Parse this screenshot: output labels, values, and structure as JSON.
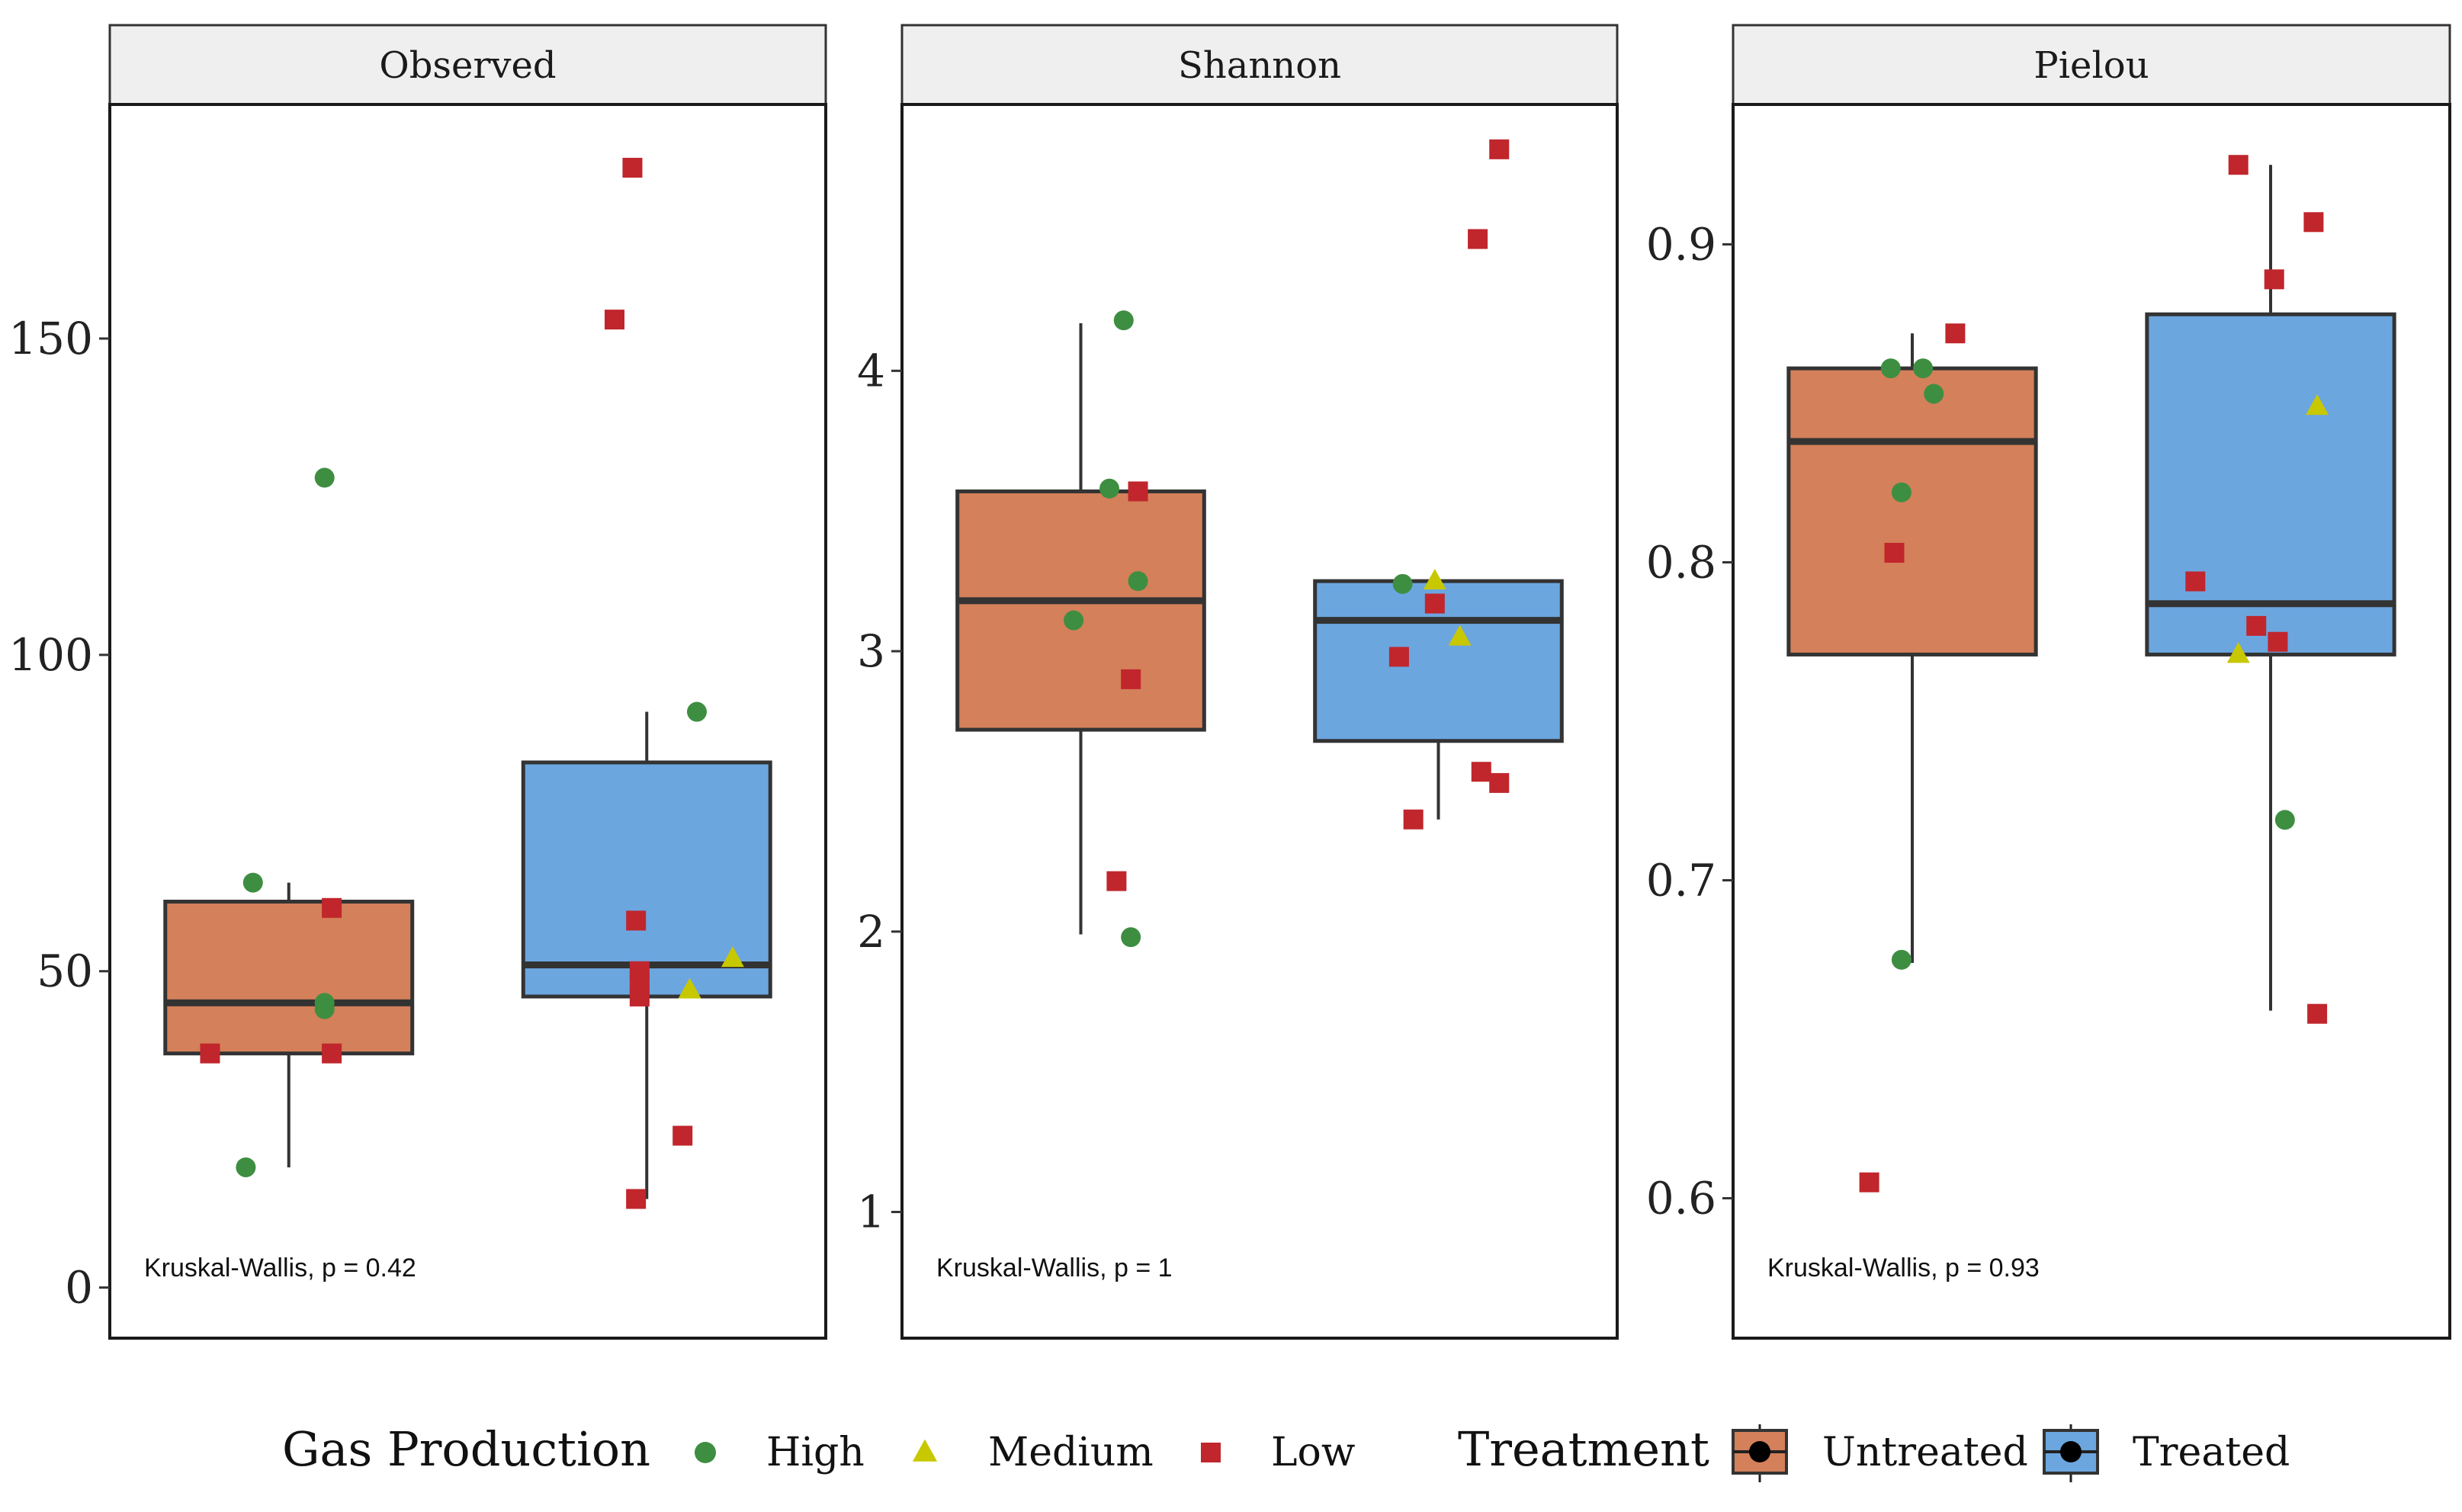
{
  "chart_data": {
    "type": "box",
    "legend_position": "bottom",
    "colors": {
      "Untreated": "#D4805A",
      "Treated": "#6CA6DF",
      "High": "#3E8E41",
      "Medium": "#C8C800",
      "Low": "#C0262C",
      "box_line": "#333333",
      "strip_fill": "#EFEFEF"
    },
    "groups": [
      "Untreated",
      "Treated"
    ],
    "legend": {
      "gas_title": "Gas Production",
      "gas_items": [
        {
          "label": "High",
          "shape": "circle"
        },
        {
          "label": "Medium",
          "shape": "triangle"
        },
        {
          "label": "Low",
          "shape": "square"
        }
      ],
      "treatment_title": "Treatment",
      "treatment_items": [
        {
          "label": "Untreated"
        },
        {
          "label": "Treated"
        }
      ]
    },
    "panels": [
      {
        "title": "Observed",
        "ylim": [
          -8,
          187
        ],
        "ticks": [
          0,
          50,
          100,
          150
        ],
        "tick_labels": [
          "0",
          "50",
          "100",
          "150"
        ],
        "annotation": "Kruskal-Wallis, p = 0.42",
        "boxes": [
          {
            "group": "Untreated",
            "q1": 37,
            "median": 45,
            "q3": 61,
            "whisker_low": 19,
            "whisker_high": 64
          },
          {
            "group": "Treated",
            "q1": 46,
            "median": 51,
            "q3": 83,
            "whisker_low": 14,
            "whisker_high": 91
          }
        ],
        "points": [
          {
            "group": "Untreated",
            "level": "High",
            "x": -0.1,
            "value": 64
          },
          {
            "group": "Untreated",
            "level": "High",
            "x": 0.1,
            "value": 128
          },
          {
            "group": "Untreated",
            "level": "High",
            "x": 0.1,
            "value": 45
          },
          {
            "group": "Untreated",
            "level": "High",
            "x": 0.1,
            "value": 44
          },
          {
            "group": "Untreated",
            "level": "High",
            "x": -0.12,
            "value": 19
          },
          {
            "group": "Untreated",
            "level": "Low",
            "x": 0.12,
            "value": 60
          },
          {
            "group": "Untreated",
            "level": "Low",
            "x": -0.22,
            "value": 37
          },
          {
            "group": "Untreated",
            "level": "Low",
            "x": 0.12,
            "value": 37
          },
          {
            "group": "Treated",
            "level": "High",
            "x": 0.14,
            "value": 91
          },
          {
            "group": "Treated",
            "level": "Medium",
            "x": 0.24,
            "value": 52
          },
          {
            "group": "Treated",
            "level": "Medium",
            "x": 0.12,
            "value": 47
          },
          {
            "group": "Treated",
            "level": "Low",
            "x": -0.04,
            "value": 177
          },
          {
            "group": "Treated",
            "level": "Low",
            "x": -0.09,
            "value": 153
          },
          {
            "group": "Treated",
            "level": "Low",
            "x": -0.03,
            "value": 58
          },
          {
            "group": "Treated",
            "level": "Low",
            "x": -0.02,
            "value": 50
          },
          {
            "group": "Treated",
            "level": "Low",
            "x": -0.02,
            "value": 48
          },
          {
            "group": "Treated",
            "level": "Low",
            "x": -0.02,
            "value": 46
          },
          {
            "group": "Treated",
            "level": "Low",
            "x": 0.1,
            "value": 24
          },
          {
            "group": "Treated",
            "level": "Low",
            "x": -0.03,
            "value": 14
          }
        ]
      },
      {
        "title": "Shannon",
        "ylim": [
          0.55,
          4.95
        ],
        "ticks": [
          1,
          2,
          3,
          4
        ],
        "tick_labels": [
          "1",
          "2",
          "3",
          "4"
        ],
        "annotation": "Kruskal-Wallis, p = 1",
        "boxes": [
          {
            "group": "Untreated",
            "q1": 2.72,
            "median": 3.18,
            "q3": 3.57,
            "whisker_low": 1.99,
            "whisker_high": 4.17
          },
          {
            "group": "Treated",
            "q1": 2.68,
            "median": 3.11,
            "q3": 3.25,
            "whisker_low": 2.4,
            "whisker_high": 3.25
          }
        ],
        "points": [
          {
            "group": "Untreated",
            "level": "High",
            "x": 0.12,
            "value": 4.18
          },
          {
            "group": "Untreated",
            "level": "High",
            "x": 0.08,
            "value": 3.58
          },
          {
            "group": "Untreated",
            "level": "High",
            "x": 0.16,
            "value": 3.25
          },
          {
            "group": "Untreated",
            "level": "High",
            "x": -0.02,
            "value": 3.11
          },
          {
            "group": "Untreated",
            "level": "High",
            "x": 0.14,
            "value": 1.98
          },
          {
            "group": "Untreated",
            "level": "Low",
            "x": 0.16,
            "value": 3.57
          },
          {
            "group": "Untreated",
            "level": "Low",
            "x": 0.14,
            "value": 2.9
          },
          {
            "group": "Untreated",
            "level": "Low",
            "x": 0.1,
            "value": 2.18
          },
          {
            "group": "Treated",
            "level": "High",
            "x": -0.1,
            "value": 3.24
          },
          {
            "group": "Treated",
            "level": "Medium",
            "x": -0.01,
            "value": 3.25
          },
          {
            "group": "Treated",
            "level": "Medium",
            "x": 0.06,
            "value": 3.05
          },
          {
            "group": "Treated",
            "level": "Low",
            "x": 0.17,
            "value": 4.79
          },
          {
            "group": "Treated",
            "level": "Low",
            "x": 0.11,
            "value": 4.47
          },
          {
            "group": "Treated",
            "level": "Low",
            "x": -0.01,
            "value": 3.17
          },
          {
            "group": "Treated",
            "level": "Low",
            "x": -0.11,
            "value": 2.98
          },
          {
            "group": "Treated",
            "level": "Low",
            "x": 0.12,
            "value": 2.57
          },
          {
            "group": "Treated",
            "level": "Low",
            "x": 0.17,
            "value": 2.53
          },
          {
            "group": "Treated",
            "level": "Low",
            "x": -0.07,
            "value": 2.4
          }
        ]
      },
      {
        "title": "Pielou",
        "ylim": [
          0.556,
          0.944
        ],
        "ticks": [
          0.6,
          0.7,
          0.8,
          0.9
        ],
        "tick_labels": [
          "0.6",
          "0.7",
          "0.8",
          "0.9"
        ],
        "annotation": "Kruskal-Wallis, p = 0.93",
        "boxes": [
          {
            "group": "Untreated",
            "q1": 0.771,
            "median": 0.838,
            "q3": 0.861,
            "whisker_low": 0.674,
            "whisker_high": 0.872
          },
          {
            "group": "Treated",
            "q1": 0.771,
            "median": 0.787,
            "q3": 0.878,
            "whisker_low": 0.659,
            "whisker_high": 0.925
          }
        ],
        "points": [
          {
            "group": "Untreated",
            "level": "High",
            "x": -0.06,
            "value": 0.861
          },
          {
            "group": "Untreated",
            "level": "High",
            "x": 0.03,
            "value": 0.861
          },
          {
            "group": "Untreated",
            "level": "High",
            "x": 0.06,
            "value": 0.853
          },
          {
            "group": "Untreated",
            "level": "High",
            "x": -0.03,
            "value": 0.822
          },
          {
            "group": "Untreated",
            "level": "High",
            "x": -0.03,
            "value": 0.675
          },
          {
            "group": "Untreated",
            "level": "Low",
            "x": 0.12,
            "value": 0.872
          },
          {
            "group": "Untreated",
            "level": "Low",
            "x": -0.05,
            "value": 0.803
          },
          {
            "group": "Untreated",
            "level": "Low",
            "x": -0.12,
            "value": 0.605
          },
          {
            "group": "Treated",
            "level": "High",
            "x": 0.04,
            "value": 0.719
          },
          {
            "group": "Treated",
            "level": "Medium",
            "x": 0.13,
            "value": 0.849
          },
          {
            "group": "Treated",
            "level": "Medium",
            "x": -0.09,
            "value": 0.771
          },
          {
            "group": "Treated",
            "level": "Low",
            "x": -0.09,
            "value": 0.925
          },
          {
            "group": "Treated",
            "level": "Low",
            "x": 0.12,
            "value": 0.907
          },
          {
            "group": "Treated",
            "level": "Low",
            "x": 0.01,
            "value": 0.889
          },
          {
            "group": "Treated",
            "level": "Low",
            "x": -0.21,
            "value": 0.794
          },
          {
            "group": "Treated",
            "level": "Low",
            "x": -0.04,
            "value": 0.78
          },
          {
            "group": "Treated",
            "level": "Low",
            "x": 0.02,
            "value": 0.775
          },
          {
            "group": "Treated",
            "level": "Low",
            "x": 0.13,
            "value": 0.658
          }
        ]
      }
    ]
  }
}
